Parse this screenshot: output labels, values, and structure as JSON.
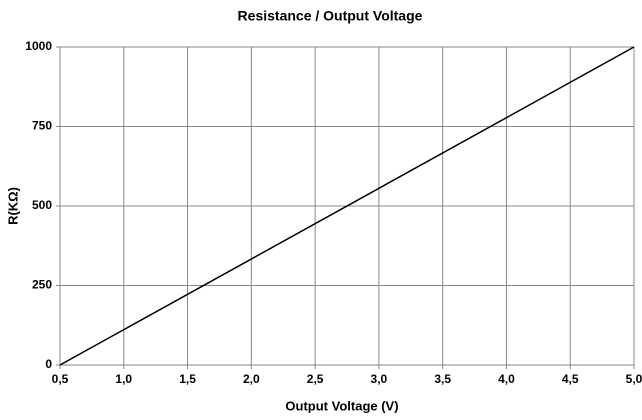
{
  "chart_data": {
    "type": "line",
    "title": "Resistance / Output Voltage",
    "xlabel": "Output Voltage (V)",
    "ylabel": "R(KΩ)",
    "x": [
      0.5,
      5.0
    ],
    "values": [
      0,
      1000
    ],
    "color": "#000000",
    "xlim": [
      0.5,
      5.0
    ],
    "xticks": [
      {
        "value": 0.5,
        "label": "0,5"
      },
      {
        "value": 1.0,
        "label": "1,0"
      },
      {
        "value": 1.5,
        "label": "1,5"
      },
      {
        "value": 2.0,
        "label": "2,0"
      },
      {
        "value": 2.5,
        "label": "2,5"
      },
      {
        "value": 3.0,
        "label": "3,0"
      },
      {
        "value": 3.5,
        "label": "3,5"
      },
      {
        "value": 4.0,
        "label": "4,0"
      },
      {
        "value": 4.5,
        "label": "4,5"
      },
      {
        "value": 5.0,
        "label": "5,0"
      }
    ],
    "ylim": [
      0,
      1000
    ],
    "yticks": [
      0,
      250,
      500,
      750,
      1000
    ],
    "grid": true
  }
}
